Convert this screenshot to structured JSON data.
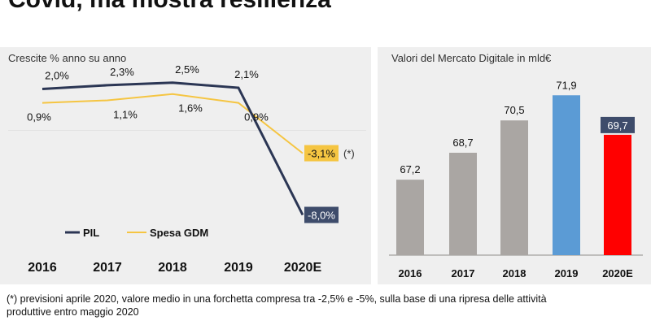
{
  "page": {
    "title_line1": "",
    "title_line2": "Covid, ma mostra resilienza",
    "footnote": "(*) previsioni aprile 2020, valore medio in una forchetta compresa tra -2,5% e -5%, sulla base di una ripresa delle attività produttive entro maggio 2020"
  },
  "colors": {
    "pil": "#2b3654",
    "spesa": "#f5c542",
    "bar_gray": "#aaa6a3",
    "bar_2019": "#5b9bd5",
    "bar_2020": "#ff0000",
    "label_box_pil": "#3e4c6b",
    "label_box_spesa": "#f5c542",
    "label_box_bar2020": "#3e4c6b"
  },
  "chart_data": [
    {
      "type": "line",
      "title": "Crescite % anno su anno",
      "categories": [
        "2016",
        "2017",
        "2018",
        "2019",
        "2020E"
      ],
      "series": [
        {
          "name": "PIL",
          "values": [
            2.0,
            2.3,
            2.5,
            2.1,
            -8.0
          ],
          "labels": [
            "2,0%",
            "2,3%",
            "2,5%",
            "2,1%",
            "-8,0%"
          ]
        },
        {
          "name": "Spesa GDM",
          "values": [
            0.9,
            1.1,
            1.6,
            0.9,
            -3.1
          ],
          "labels": [
            "0,9%",
            "1,1%",
            "1,6%",
            "0,9%",
            "-3,1%"
          ]
        }
      ],
      "annotation": "(*)",
      "ylim": [
        -9,
        3
      ],
      "legend_position": "bottom-left",
      "grid": false
    },
    {
      "type": "bar",
      "title": "Valori del Mercato Digitale in mld€",
      "categories": [
        "2016",
        "2017",
        "2018",
        "2019",
        "2020E"
      ],
      "values": [
        67.2,
        68.7,
        70.5,
        71.9,
        69.7
      ],
      "labels": [
        "67,2",
        "68,7",
        "70,5",
        "71,9",
        "69,7"
      ],
      "ylim": [
        63,
        72.5
      ],
      "grid": false
    }
  ]
}
